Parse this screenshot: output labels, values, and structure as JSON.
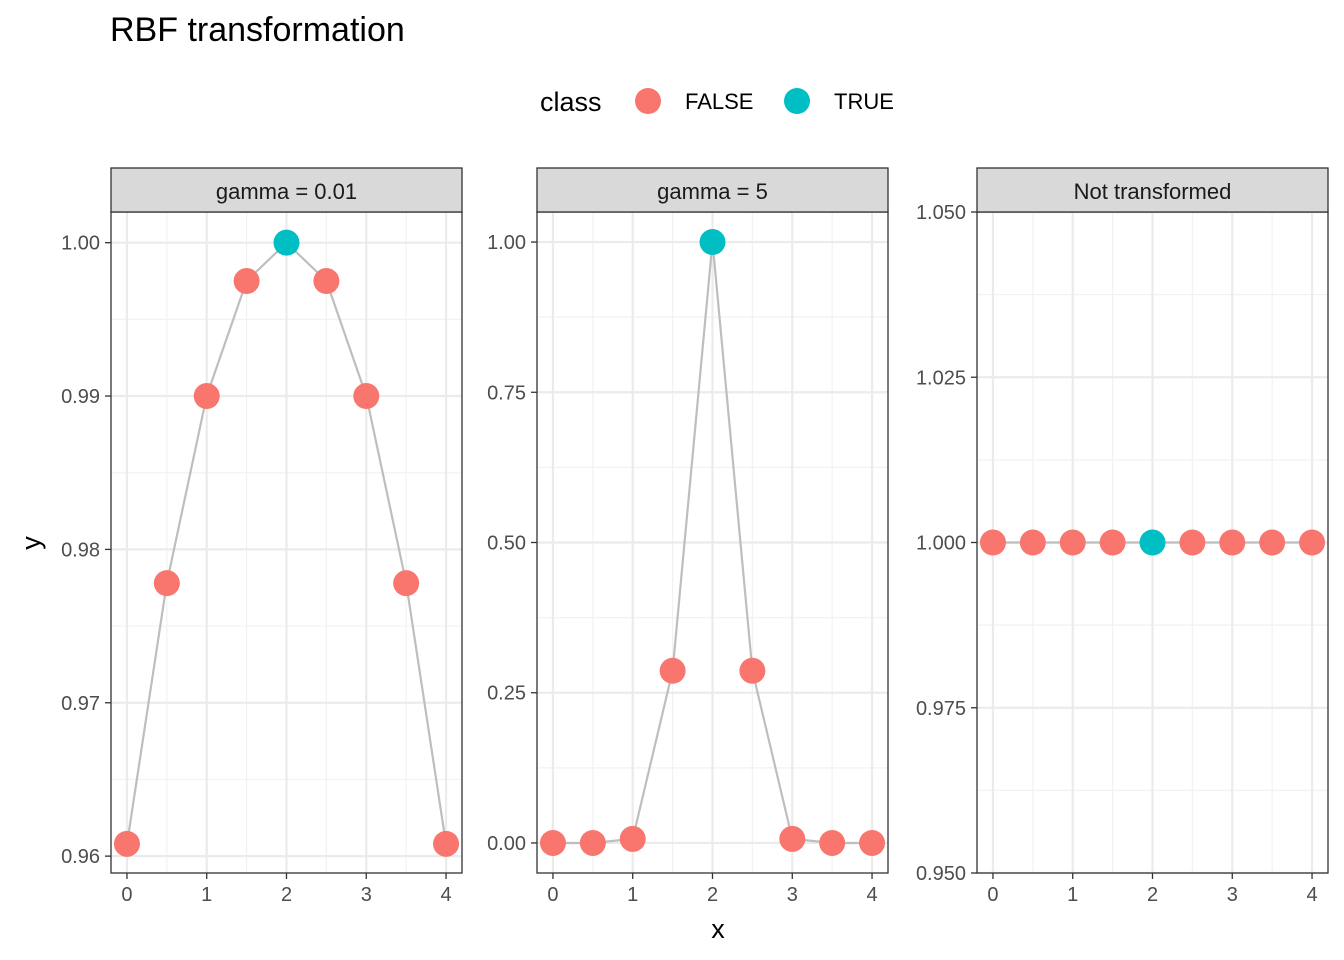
{
  "chart_data": {
    "type": "scatter",
    "title": "RBF transformation",
    "xlabel": "x",
    "ylabel": "y",
    "legend": {
      "title": "class",
      "position": "top",
      "entries": [
        {
          "label": "FALSE",
          "color": "#F8766D"
        },
        {
          "label": "TRUE",
          "color": "#00BFC4"
        }
      ]
    },
    "line_color": "#BEBEBE",
    "grid": true,
    "x": [
      0,
      0.5,
      1,
      1.5,
      2,
      2.5,
      3,
      3.5,
      4
    ],
    "class": [
      "FALSE",
      "FALSE",
      "FALSE",
      "FALSE",
      "TRUE",
      "FALSE",
      "FALSE",
      "FALSE",
      "FALSE"
    ],
    "x_ticks": [
      "0",
      "1",
      "2",
      "3",
      "4"
    ],
    "xlim": [
      -0.2,
      4.2
    ],
    "panels": [
      {
        "strip": "gamma = 0.01",
        "y": [
          0.9608,
          0.9778,
          0.99,
          0.9975,
          1.0,
          0.9975,
          0.99,
          0.9778,
          0.9608
        ],
        "ylim": [
          0.9589,
          1.002
        ],
        "y_ticks": [
          0.96,
          0.97,
          0.98,
          0.99,
          1.0
        ],
        "y_tick_labels": [
          "0.96",
          "0.97",
          "0.98",
          "0.99",
          "1.00"
        ]
      },
      {
        "strip": "gamma = 5",
        "y": [
          0.0,
          0.0,
          0.0067,
          0.2865,
          1.0,
          0.2865,
          0.0067,
          0.0,
          0.0
        ],
        "ylim": [
          -0.05,
          1.05
        ],
        "y_ticks": [
          0.0,
          0.25,
          0.5,
          0.75,
          1.0
        ],
        "y_tick_labels": [
          "0.00",
          "0.25",
          "0.50",
          "0.75",
          "1.00"
        ]
      },
      {
        "strip": "Not transformed",
        "y": [
          1.0,
          1.0,
          1.0,
          1.0,
          1.0,
          1.0,
          1.0,
          1.0,
          1.0
        ],
        "ylim": [
          0.95,
          1.05
        ],
        "y_ticks": [
          0.95,
          0.975,
          1.0,
          1.025,
          1.05
        ],
        "y_tick_labels": [
          "0.950",
          "0.975",
          "1.000",
          "1.025",
          "1.050"
        ]
      }
    ]
  }
}
